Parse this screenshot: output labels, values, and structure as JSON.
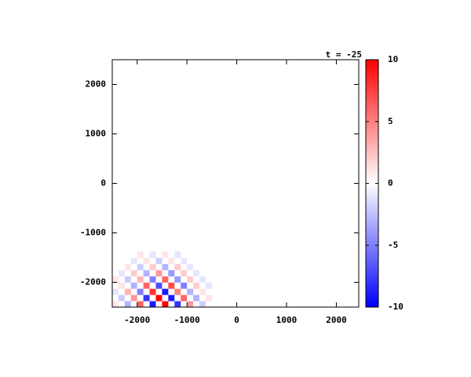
{
  "chart_data": {
    "type": "heatmap",
    "title": "t = -25",
    "x": [
      -2437.5,
      -2312.5,
      -2187.5,
      -2062.5,
      -1937.5,
      -1812.5,
      -1687.5,
      -1562.5,
      -1437.5,
      -1312.5,
      -1187.5,
      -1062.5,
      -937.5,
      -812.5,
      -687.5,
      -562.5
    ],
    "y": [
      -2437.5,
      -2312.5,
      -2187.5,
      -2062.5,
      -1937.5,
      -1812.5,
      -1687.5,
      -1562.5,
      -1437.5
    ],
    "z": [
      [
        1,
        0,
        -3,
        0,
        6,
        0,
        -9,
        0,
        10,
        0,
        -8,
        0,
        4,
        0,
        -2,
        0
      ],
      [
        0,
        -2,
        0,
        4,
        0,
        -8,
        0,
        10,
        0,
        -9,
        0,
        6,
        0,
        -3,
        0,
        1
      ],
      [
        -1,
        0,
        3,
        0,
        -5,
        0,
        8,
        0,
        -9,
        0,
        5,
        0,
        -3,
        0,
        1,
        0
      ],
      [
        0,
        1,
        0,
        -3,
        0,
        6,
        0,
        -7,
        0,
        7,
        0,
        -5,
        0,
        2,
        0,
        -1
      ],
      [
        1,
        0,
        -2,
        0,
        3,
        0,
        -5,
        0,
        6,
        0,
        -4,
        0,
        2,
        0,
        -1,
        0
      ],
      [
        0,
        -1,
        0,
        2,
        0,
        -3,
        0,
        4,
        0,
        -4,
        0,
        2,
        0,
        -1,
        0,
        0
      ],
      [
        0,
        0,
        1,
        0,
        -2,
        0,
        2,
        0,
        -3,
        0,
        2,
        0,
        -1,
        0,
        0,
        0
      ],
      [
        0,
        0,
        0,
        -1,
        0,
        1,
        0,
        -2,
        0,
        1,
        0,
        -1,
        0,
        0,
        0,
        0
      ],
      [
        0,
        0,
        0,
        0,
        1,
        0,
        -1,
        0,
        1,
        0,
        -1,
        0,
        0,
        0,
        0,
        0
      ]
    ],
    "xlim": [
      -2500,
      2450
    ],
    "ylim": [
      -2500,
      2500
    ],
    "xticks": [
      -2000,
      -1000,
      0,
      1000,
      2000
    ],
    "yticks": [
      -2000,
      -1000,
      0,
      1000,
      2000
    ],
    "zlim": [
      -10,
      10
    ],
    "zticks": [
      -10,
      -5,
      0,
      5,
      10
    ],
    "colormap": [
      "#0000ff",
      "#ffffff",
      "#ff0000"
    ]
  }
}
